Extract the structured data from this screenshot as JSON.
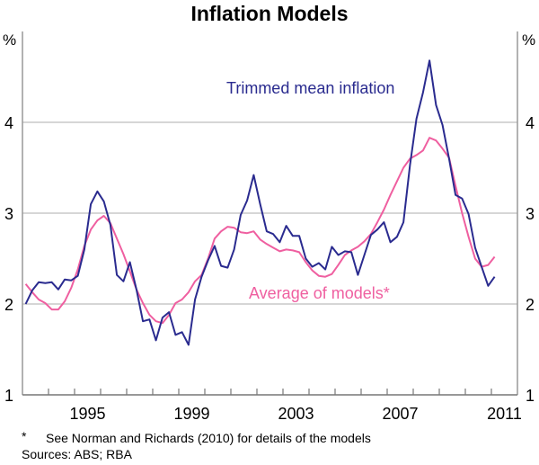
{
  "chart_data": {
    "type": "line",
    "title": "Inflation Models",
    "ylabel_left": "%",
    "ylabel_right": "%",
    "ylim": [
      1,
      5
    ],
    "yticks": [
      1,
      2,
      3,
      4
    ],
    "xlim": [
      1993,
      2012
    ],
    "xtick_labels": [
      "1995",
      "1999",
      "2003",
      "2007",
      "2011"
    ],
    "grid": true,
    "x": [
      "1993Q1",
      "1993Q2",
      "1993Q3",
      "1993Q4",
      "1994Q1",
      "1994Q2",
      "1994Q3",
      "1994Q4",
      "1995Q1",
      "1995Q2",
      "1995Q3",
      "1995Q4",
      "1996Q1",
      "1996Q2",
      "1996Q3",
      "1996Q4",
      "1997Q1",
      "1997Q2",
      "1997Q3",
      "1997Q4",
      "1998Q1",
      "1998Q2",
      "1998Q3",
      "1998Q4",
      "1999Q1",
      "1999Q2",
      "1999Q3",
      "1999Q4",
      "2000Q1",
      "2000Q2",
      "2000Q3",
      "2000Q4",
      "2001Q1",
      "2001Q2",
      "2001Q3",
      "2001Q4",
      "2002Q1",
      "2002Q2",
      "2002Q3",
      "2002Q4",
      "2003Q1",
      "2003Q2",
      "2003Q3",
      "2003Q4",
      "2004Q1",
      "2004Q2",
      "2004Q3",
      "2004Q4",
      "2005Q1",
      "2005Q2",
      "2005Q3",
      "2005Q4",
      "2006Q1",
      "2006Q2",
      "2006Q3",
      "2006Q4",
      "2007Q1",
      "2007Q2",
      "2007Q3",
      "2007Q4",
      "2008Q1",
      "2008Q2",
      "2008Q3",
      "2008Q4",
      "2009Q1",
      "2009Q2",
      "2009Q3",
      "2009Q4",
      "2010Q1",
      "2010Q2",
      "2010Q3",
      "2010Q4",
      "2011Q1"
    ],
    "series": [
      {
        "name": "Trimmed mean inflation",
        "color": "#2a2b8f",
        "values": [
          2.0,
          2.15,
          2.24,
          2.23,
          2.24,
          2.16,
          2.27,
          2.26,
          2.31,
          2.6,
          3.1,
          3.24,
          3.13,
          2.87,
          2.32,
          2.25,
          2.46,
          2.16,
          1.81,
          1.83,
          1.6,
          1.85,
          1.91,
          1.66,
          1.69,
          1.55,
          2.05,
          2.3,
          2.48,
          2.64,
          2.42,
          2.4,
          2.6,
          2.98,
          3.14,
          3.42,
          3.1,
          2.8,
          2.77,
          2.68,
          2.86,
          2.75,
          2.75,
          2.5,
          2.41,
          2.45,
          2.38,
          2.63,
          2.54,
          2.58,
          2.57,
          2.32,
          2.54,
          2.76,
          2.82,
          2.9,
          2.68,
          2.74,
          2.9,
          3.53,
          4.04,
          4.33,
          4.68,
          4.19,
          3.97,
          3.6,
          3.2,
          3.16,
          2.99,
          2.62,
          2.41,
          2.2,
          2.3
        ]
      },
      {
        "name": "Average of models*",
        "color": "#ef5fa0",
        "values": [
          2.22,
          2.13,
          2.05,
          2.01,
          1.94,
          1.94,
          2.03,
          2.18,
          2.38,
          2.64,
          2.82,
          2.92,
          2.97,
          2.89,
          2.72,
          2.55,
          2.36,
          2.16,
          2.01,
          1.88,
          1.81,
          1.79,
          1.88,
          2.01,
          2.05,
          2.13,
          2.25,
          2.32,
          2.5,
          2.72,
          2.8,
          2.85,
          2.84,
          2.79,
          2.78,
          2.8,
          2.71,
          2.66,
          2.62,
          2.58,
          2.6,
          2.59,
          2.57,
          2.46,
          2.37,
          2.31,
          2.3,
          2.33,
          2.43,
          2.54,
          2.59,
          2.63,
          2.69,
          2.77,
          2.9,
          3.04,
          3.2,
          3.35,
          3.5,
          3.6,
          3.64,
          3.69,
          3.83,
          3.8,
          3.71,
          3.61,
          3.3,
          3.0,
          2.74,
          2.5,
          2.41,
          2.43,
          2.52
        ]
      }
    ],
    "footnote": "See Norman and Richards (2010) for details of the models",
    "footnote_marker": "*",
    "sources": "Sources: ABS; RBA"
  }
}
